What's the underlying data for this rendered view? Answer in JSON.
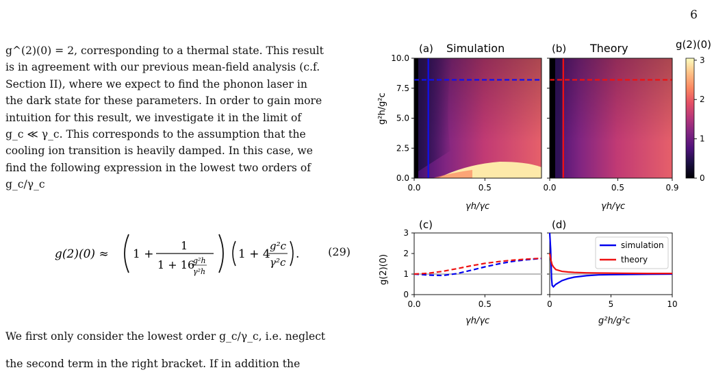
{
  "page_number": "6",
  "text_top": [
    "g^(2)(0) = 2, corresponding to a thermal state. This result",
    "is in agreement with our previous mean-field analysis (c.f.",
    "Section II), where we expect to find the phonon laser in",
    "the dark state for these parameters. In order to gain more",
    "intuition for this result, we investigate it in the limit of",
    "g_c ≪ γ_c. This corresponds to the assumption that the",
    "cooling ion transition is heavily damped. In this case, we",
    "find the following expression in the lowest two orders of",
    "g_c/γ_c"
  ],
  "equation": {
    "lhs": "g(2)(0) ≈",
    "number": "(29)"
  },
  "text_bottom": [
    "We first only consider the lowest order g_c/γ_c, i.e. neglect",
    "the second term in the right bracket. If in addition the"
  ],
  "figure": {
    "panels": {
      "a": {
        "tag": "(a)",
        "title": "Simulation"
      },
      "b": {
        "tag": "(b)",
        "title": "Theory"
      },
      "c": {
        "tag": "(c)"
      },
      "d": {
        "tag": "(d)"
      }
    },
    "colorbar_title": "g(2)(0)",
    "colorbar_ticks": [
      "0",
      "1",
      "2",
      "3"
    ],
    "heatmap_yticks": [
      "0.0",
      "2.5",
      "5.0",
      "7.5",
      "10.0"
    ],
    "heatmap_xticks_a": [
      "0.0",
      "0.5"
    ],
    "heatmap_xticks_b": [
      "0.0",
      "0.5",
      "0.9"
    ],
    "line_yticks": [
      "0",
      "1",
      "2",
      "3"
    ],
    "line_xticks_c": [
      "0.0",
      "0.5"
    ],
    "line_xticks_d": [
      "0",
      "5",
      "10"
    ],
    "legend": {
      "simulation": "simulation",
      "theory": "theory"
    },
    "colors": {
      "simulation": "#0000ee",
      "theory": "#ee1111",
      "reference": "#bbbbbb"
    }
  },
  "chart_data": [
    {
      "type": "heatmap",
      "panel": "a",
      "title": "Simulation",
      "xlabel": "γh/γc",
      "ylabel": "g_h²/g_c²",
      "xlim": [
        0,
        0.9
      ],
      "ylim": [
        0,
        10
      ],
      "clim": [
        0,
        3
      ],
      "cut_x": 0.1,
      "cut_y": 8.2
    },
    {
      "type": "heatmap",
      "panel": "b",
      "title": "Theory",
      "xlabel": "γh/γc",
      "xlim": [
        0,
        0.9
      ],
      "ylim": [
        0,
        10
      ],
      "clim": [
        0,
        3
      ],
      "cut_x": 0.1,
      "cut_y": 8.2
    },
    {
      "type": "line",
      "panel": "c",
      "xlabel": "γh/γc",
      "ylabel": "g(2)(0)",
      "xlim": [
        0,
        0.9
      ],
      "ylim": [
        0,
        3
      ],
      "reference_y": 1,
      "series": [
        {
          "name": "simulation",
          "x": [
            0,
            0.1,
            0.2,
            0.3,
            0.4,
            0.5,
            0.6,
            0.7,
            0.8,
            0.9
          ],
          "y": [
            1.0,
            0.95,
            0.93,
            1.02,
            1.18,
            1.35,
            1.5,
            1.62,
            1.7,
            1.76
          ]
        },
        {
          "name": "theory",
          "x": [
            0,
            0.1,
            0.2,
            0.3,
            0.4,
            0.5,
            0.6,
            0.7,
            0.8,
            0.9
          ],
          "y": [
            1.0,
            1.04,
            1.13,
            1.26,
            1.4,
            1.52,
            1.61,
            1.68,
            1.73,
            1.77
          ]
        }
      ]
    },
    {
      "type": "line",
      "panel": "d",
      "xlabel": "g_h²/g_c²",
      "xlim": [
        0,
        10
      ],
      "ylim": [
        0,
        3
      ],
      "reference_y": 1,
      "series": [
        {
          "name": "simulation",
          "x": [
            0,
            0.08,
            0.15,
            0.2,
            0.3,
            0.5,
            1,
            1.5,
            2,
            3,
            4,
            6,
            8,
            10
          ],
          "y": [
            3,
            2.2,
            0.8,
            0.45,
            0.38,
            0.5,
            0.68,
            0.78,
            0.85,
            0.92,
            0.96,
            0.98,
            0.99,
            1.0
          ]
        },
        {
          "name": "theory",
          "x": [
            0,
            0.05,
            0.1,
            0.2,
            0.3,
            0.5,
            1,
            1.5,
            2,
            3,
            4,
            6,
            8,
            10
          ],
          "y": [
            2.0,
            1.85,
            1.68,
            1.45,
            1.35,
            1.22,
            1.13,
            1.1,
            1.08,
            1.06,
            1.05,
            1.04,
            1.03,
            1.03
          ]
        }
      ]
    }
  ]
}
